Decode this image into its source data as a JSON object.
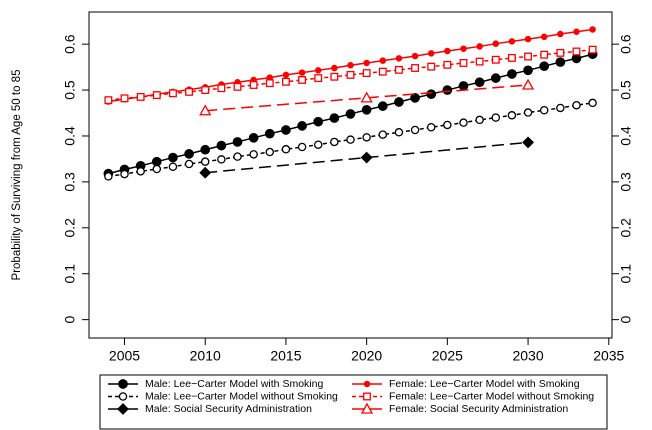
{
  "chart_data": {
    "type": "line",
    "y_label": "Probability of Surviving from Age 50 to 85",
    "xlim": [
      2002.8,
      2035.2
    ],
    "xticks": [
      2005,
      2010,
      2015,
      2020,
      2025,
      2030,
      2035
    ],
    "ylim": [
      -0.04,
      0.67
    ],
    "yticks": [
      0.0,
      0.1,
      0.2,
      0.3,
      0.4,
      0.5,
      0.6
    ],
    "series": [
      {
        "name": "Male: Lee−Carter Model with Smoking",
        "color": "#000000",
        "marker": "circle-filled",
        "linestyle": "solid",
        "x": [
          2004,
          2005,
          2006,
          2007,
          2008,
          2009,
          2010,
          2011,
          2012,
          2013,
          2014,
          2015,
          2016,
          2017,
          2018,
          2019,
          2020,
          2021,
          2022,
          2023,
          2024,
          2025,
          2026,
          2027,
          2028,
          2029,
          2030,
          2031,
          2032,
          2033,
          2034
        ],
        "values": [
          0.318,
          0.327,
          0.335,
          0.344,
          0.353,
          0.361,
          0.37,
          0.379,
          0.387,
          0.396,
          0.405,
          0.413,
          0.422,
          0.431,
          0.439,
          0.448,
          0.457,
          0.465,
          0.474,
          0.483,
          0.491,
          0.5,
          0.509,
          0.517,
          0.526,
          0.535,
          0.543,
          0.552,
          0.561,
          0.569,
          0.578
        ]
      },
      {
        "name": "Male: Lee−Carter Model without Smoking",
        "color": "#000000",
        "marker": "circle-open",
        "linestyle": "dashed",
        "x": [
          2004,
          2005,
          2006,
          2007,
          2008,
          2009,
          2010,
          2011,
          2012,
          2013,
          2014,
          2015,
          2016,
          2017,
          2018,
          2019,
          2020,
          2021,
          2022,
          2023,
          2024,
          2025,
          2026,
          2027,
          2028,
          2029,
          2030,
          2031,
          2032,
          2033,
          2034
        ],
        "values": [
          0.312,
          0.317,
          0.323,
          0.328,
          0.333,
          0.339,
          0.344,
          0.349,
          0.355,
          0.36,
          0.365,
          0.371,
          0.376,
          0.381,
          0.387,
          0.392,
          0.397,
          0.403,
          0.408,
          0.413,
          0.419,
          0.424,
          0.429,
          0.435,
          0.44,
          0.445,
          0.451,
          0.456,
          0.461,
          0.467,
          0.472
        ]
      },
      {
        "name": "Male: Social Security Administration",
        "color": "#000000",
        "marker": "diamond",
        "linestyle": "longdash",
        "x": [
          2010,
          2020,
          2030
        ],
        "values": [
          0.32,
          0.353,
          0.386
        ]
      },
      {
        "name": "Female: Lee−Carter Model with Smoking",
        "color": "#ff0000",
        "marker": "dot",
        "linestyle": "solid",
        "x": [
          2004,
          2005,
          2006,
          2007,
          2008,
          2009,
          2010,
          2011,
          2012,
          2013,
          2014,
          2015,
          2016,
          2017,
          2018,
          2019,
          2020,
          2021,
          2022,
          2023,
          2024,
          2025,
          2026,
          2027,
          2028,
          2029,
          2030,
          2031,
          2032,
          2033,
          2034
        ],
        "values": [
          0.475,
          0.48,
          0.485,
          0.491,
          0.496,
          0.501,
          0.506,
          0.512,
          0.517,
          0.522,
          0.527,
          0.533,
          0.538,
          0.543,
          0.548,
          0.554,
          0.559,
          0.564,
          0.569,
          0.574,
          0.58,
          0.585,
          0.59,
          0.595,
          0.601,
          0.606,
          0.611,
          0.616,
          0.622,
          0.627,
          0.632
        ]
      },
      {
        "name": "Female: Lee−Carter Model without Smoking",
        "color": "#ff0000",
        "marker": "square-open",
        "linestyle": "dashed",
        "x": [
          2004,
          2005,
          2006,
          2007,
          2008,
          2009,
          2010,
          2011,
          2012,
          2013,
          2014,
          2015,
          2016,
          2017,
          2018,
          2019,
          2020,
          2021,
          2022,
          2023,
          2024,
          2025,
          2026,
          2027,
          2028,
          2029,
          2030,
          2031,
          2032,
          2033,
          2034
        ],
        "values": [
          0.478,
          0.482,
          0.485,
          0.489,
          0.493,
          0.496,
          0.5,
          0.504,
          0.507,
          0.511,
          0.515,
          0.518,
          0.522,
          0.526,
          0.529,
          0.533,
          0.537,
          0.54,
          0.544,
          0.548,
          0.551,
          0.555,
          0.559,
          0.562,
          0.566,
          0.57,
          0.573,
          0.577,
          0.581,
          0.584,
          0.588
        ]
      },
      {
        "name": "Female: Social Security Administration",
        "color": "#ff0000",
        "marker": "triangle-open",
        "linestyle": "longdash",
        "x": [
          2010,
          2020,
          2030
        ],
        "values": [
          0.455,
          0.483,
          0.511
        ]
      }
    ]
  }
}
